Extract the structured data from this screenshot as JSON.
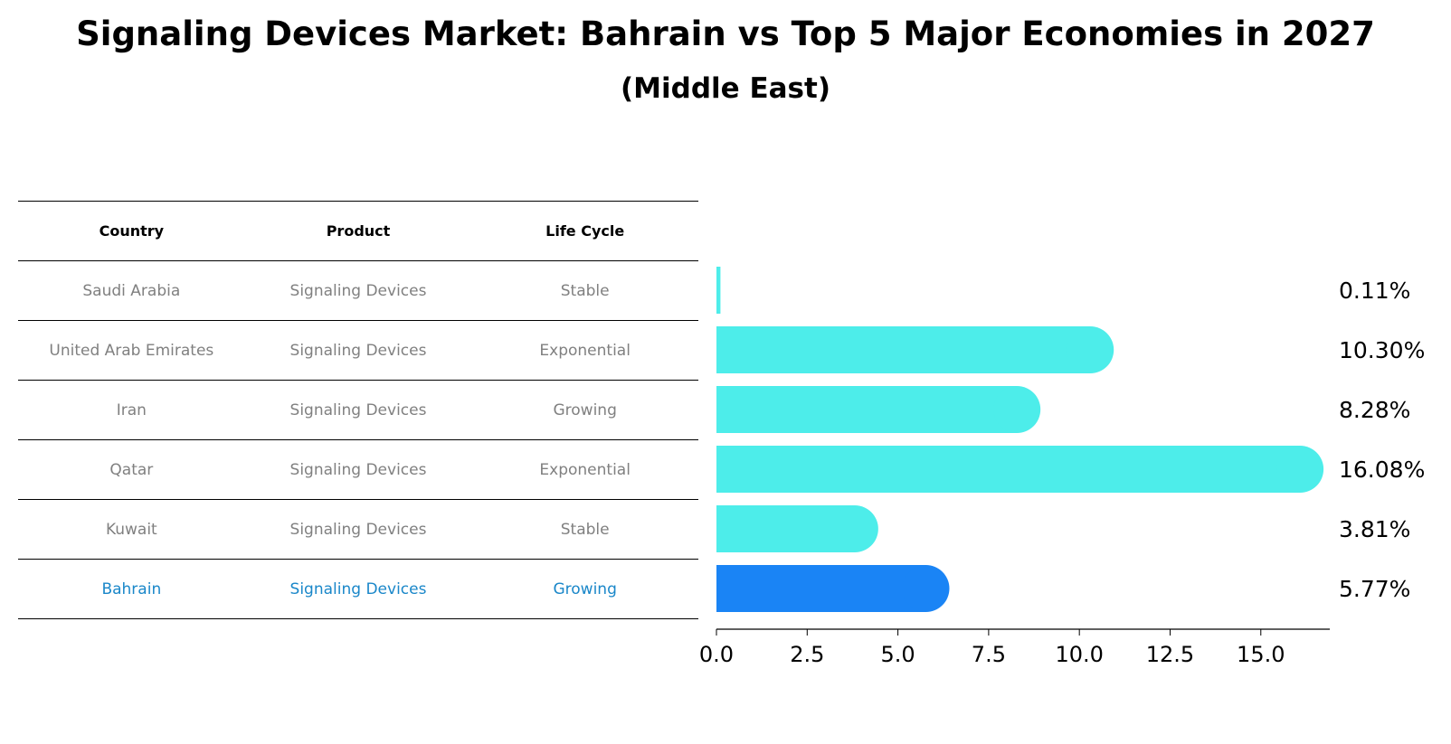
{
  "title": "Signaling Devices Market: Bahrain vs Top 5 Major Economies in 2027",
  "subtitle": "(Middle East)",
  "table": {
    "headers": [
      "Country",
      "Product",
      "Life Cycle"
    ],
    "rows": [
      {
        "country": "Saudi Arabia",
        "product": "Signaling Devices",
        "life_cycle": "Stable"
      },
      {
        "country": "United Arab Emirates",
        "product": "Signaling Devices",
        "life_cycle": "Exponential"
      },
      {
        "country": "Iran",
        "product": "Signaling Devices",
        "life_cycle": "Growing"
      },
      {
        "country": "Qatar",
        "product": "Signaling Devices",
        "life_cycle": "Exponential"
      },
      {
        "country": "Kuwait",
        "product": "Signaling Devices",
        "life_cycle": "Stable"
      },
      {
        "country": "Bahrain",
        "product": "Signaling Devices",
        "life_cycle": "Growing"
      }
    ]
  },
  "colors": {
    "bar": "#4DEDEA",
    "highlight_bar": "#1A84F5",
    "highlight_text": "#1A87C9",
    "muted_text": "#808080"
  },
  "chart_data": {
    "type": "bar",
    "orientation": "horizontal",
    "categories": [
      "Saudi Arabia",
      "United Arab Emirates",
      "Iran",
      "Qatar",
      "Kuwait",
      "Bahrain"
    ],
    "values": [
      0.11,
      10.3,
      8.28,
      16.08,
      3.81,
      5.77
    ],
    "labels": [
      "0.11%",
      "10.30%",
      "8.28%",
      "16.08%",
      "3.81%",
      "5.77%"
    ],
    "highlight": "Bahrain",
    "xlim": [
      0,
      16.9
    ],
    "xticks": [
      0.0,
      2.5,
      5.0,
      7.5,
      10.0,
      12.5,
      15.0
    ],
    "xtick_labels": [
      "0.0",
      "2.5",
      "5.0",
      "7.5",
      "10.0",
      "12.5",
      "15.0"
    ]
  }
}
